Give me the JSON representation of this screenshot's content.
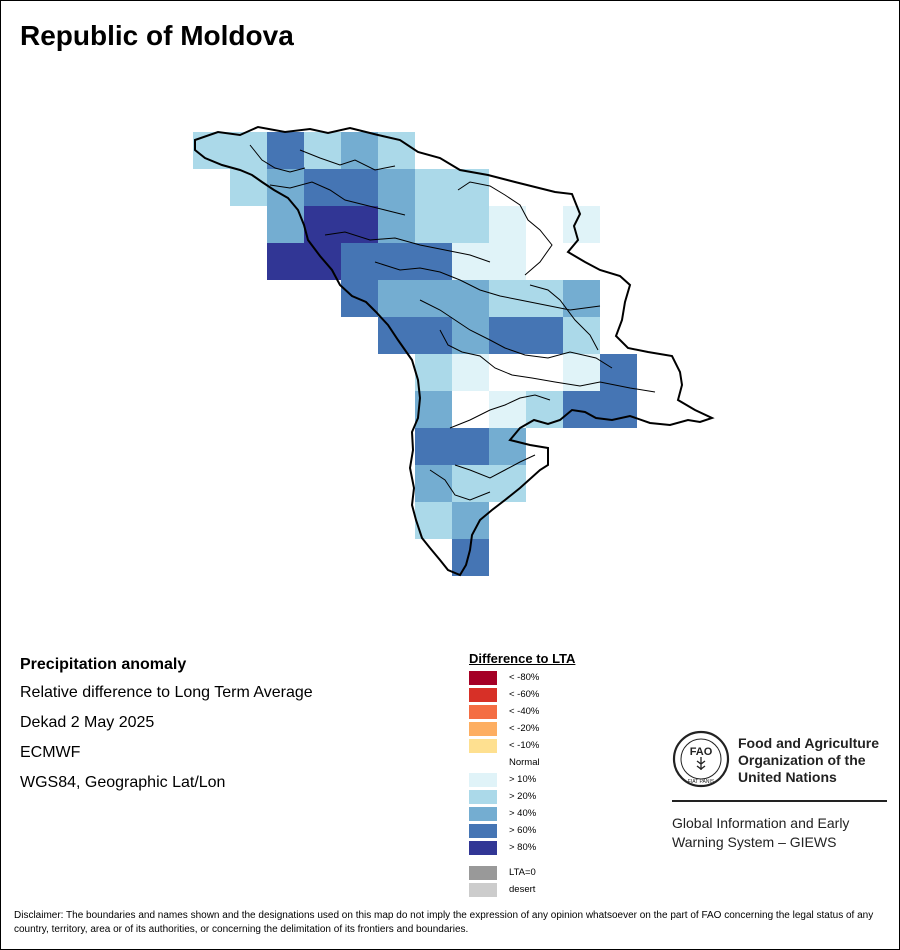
{
  "title": "Republic of Moldova",
  "info": {
    "heading": "Precipitation anomaly",
    "lines": [
      "Relative difference to Long Term Average",
      "Dekad 2 May 2025",
      "ECMWF",
      "WGS84, Geographic Lat/Lon"
    ]
  },
  "legend": {
    "title": "Difference to LTA",
    "classes": [
      {
        "label": "< -80%",
        "color": "#a50026"
      },
      {
        "label": "< -60%",
        "color": "#d73027"
      },
      {
        "label": "< -40%",
        "color": "#f46d43"
      },
      {
        "label": "< -20%",
        "color": "#fdae61"
      },
      {
        "label": "< -10%",
        "color": "#fee090"
      },
      {
        "label": "Normal",
        "color": "#ffffff"
      },
      {
        "label": "> 10%",
        "color": "#e0f3f8"
      },
      {
        "label": "> 20%",
        "color": "#abd9e9"
      },
      {
        "label": "> 40%",
        "color": "#74add1"
      },
      {
        "label": "> 60%",
        "color": "#4575b4"
      },
      {
        "label": "> 80%",
        "color": "#313695"
      }
    ],
    "extra": [
      {
        "label": "LTA=0",
        "color": "#999999"
      },
      {
        "label": "desert",
        "color": "#cccccc"
      }
    ]
  },
  "grid": {
    "cols": 12,
    "rows": 12,
    "cells": [
      [
        2,
        2,
        4,
        2,
        3,
        2,
        0,
        0,
        0,
        0,
        0,
        0
      ],
      [
        0,
        2,
        3,
        4,
        4,
        3,
        2,
        2,
        0,
        0,
        0,
        0
      ],
      [
        0,
        0,
        3,
        5,
        5,
        3,
        2,
        2,
        1,
        0,
        1,
        0
      ],
      [
        0,
        0,
        5,
        5,
        4,
        4,
        4,
        1,
        1,
        0,
        0,
        0
      ],
      [
        0,
        0,
        0,
        0,
        4,
        3,
        3,
        3,
        2,
        2,
        3,
        0
      ],
      [
        0,
        0,
        0,
        0,
        0,
        4,
        4,
        3,
        4,
        4,
        2,
        0
      ],
      [
        0,
        0,
        0,
        0,
        0,
        0,
        2,
        1,
        0,
        0,
        1,
        4
      ],
      [
        0,
        0,
        0,
        0,
        0,
        0,
        3,
        0,
        1,
        2,
        4,
        4
      ],
      [
        0,
        0,
        0,
        0,
        0,
        0,
        4,
        4,
        3,
        0,
        0,
        0
      ],
      [
        0,
        0,
        0,
        0,
        0,
        0,
        3,
        2,
        2,
        0,
        0,
        0
      ],
      [
        0,
        0,
        0,
        0,
        0,
        0,
        2,
        3,
        0,
        0,
        0,
        0
      ],
      [
        0,
        0,
        0,
        0,
        0,
        0,
        0,
        4,
        0,
        0,
        0,
        0
      ]
    ]
  },
  "fao": {
    "emblem_text": "FAO",
    "motto": "FIAT PANIS",
    "name_lines": [
      "Food and Agriculture",
      "Organization of the",
      "United Nations"
    ],
    "system_lines": [
      "Global Information and Early",
      "Warning System – GIEWS"
    ]
  },
  "disclaimer": "Disclaimer: The boundaries and names shown and the designations used on this map do not imply the expression of any opinion whatsoever on the part of FAO concerning the legal status of any country, territory, area or of its authorities, or concerning the delimitation of its frontiers and boundaries."
}
